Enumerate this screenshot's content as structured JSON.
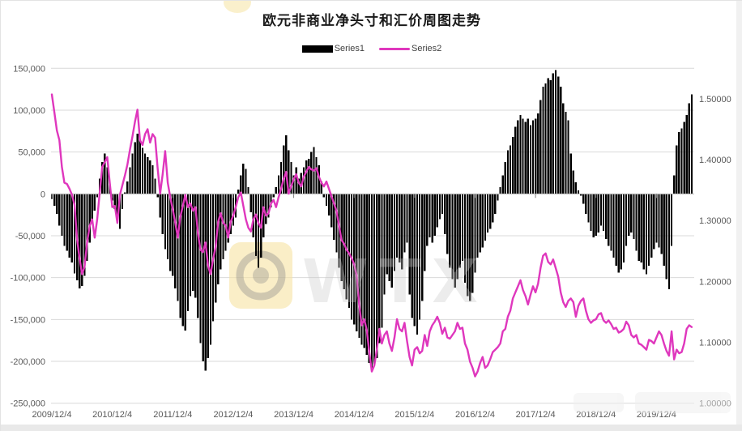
{
  "title": "欧元非商业净头寸和汇价周图走势",
  "legend": [
    {
      "label": "Series1",
      "color": "#000000",
      "type": "bar"
    },
    {
      "label": "Series2",
      "color": "#df37bd",
      "type": "line"
    }
  ],
  "colors": {
    "bar": "#000000",
    "line": "#df37bd",
    "gridline": "#d9d9d9",
    "zero_axis": "#bfbfbf",
    "axis_tick": "#808080",
    "axis_text": "#595959",
    "watermark_yellow": "#f6e3a2",
    "watermark_gray": "#8a8a8a"
  },
  "watermark": {
    "center_letters": "WTX",
    "has_center_badge": true,
    "has_corner_mark": true
  },
  "chart_data": {
    "type": "bar+line",
    "title": "欧元非商业净头寸和汇价周图走势",
    "x_start": "2009/12/4",
    "sample_interval": "semi-monthly",
    "samples_per_year": 24,
    "grid": "horizontal",
    "legend_position": "top-center",
    "x_tick_labels": [
      "2009/12/4",
      "2010/12/4",
      "2011/12/4",
      "2012/12/4",
      "2013/12/4",
      "2014/12/4",
      "2015/12/4",
      "2016/12/4",
      "2017/12/4",
      "2018/12/4",
      "2019/12/4"
    ],
    "left_axis": {
      "series": "Series1",
      "range": [
        -250000,
        150000
      ],
      "tick_labels": [
        "150,000",
        "100,000",
        "50,000",
        "0",
        "-50,000",
        "-100,000",
        "-150,000",
        "-200,000",
        "-250,000"
      ]
    },
    "right_axis": {
      "series": "Series2",
      "range": [
        1.0,
        1.55
      ],
      "tick_values": [
        1.5,
        1.4,
        1.3,
        1.2,
        1.1,
        1.0
      ],
      "tick_labels": [
        "1.50000",
        "1.40000",
        "1.30000",
        "1.20000",
        "1.10000",
        "1.00000"
      ]
    },
    "series": [
      {
        "name": "Series1",
        "type": "bar",
        "color": "#000000",
        "values": [
          -6000,
          -14000,
          -24000,
          -38000,
          -50000,
          -62000,
          -68000,
          -76000,
          -82000,
          -95000,
          -103000,
          -113000,
          -110000,
          -98000,
          -80000,
          -58000,
          -35000,
          -20000,
          -4000,
          18000,
          38000,
          48000,
          32000,
          12000,
          -8000,
          -18000,
          -32000,
          -42000,
          -18000,
          2000,
          15000,
          32000,
          48000,
          62000,
          72000,
          65000,
          55000,
          48000,
          44000,
          40000,
          34000,
          18000,
          -4000,
          -28000,
          -48000,
          -66000,
          -78000,
          -92000,
          -98000,
          -113000,
          -128000,
          -148000,
          -158000,
          -163000,
          -140000,
          -122000,
          -116000,
          -124000,
          -148000,
          -178000,
          -200000,
          -211000,
          -196000,
          -180000,
          -152000,
          -130000,
          -108000,
          -90000,
          -78000,
          -68000,
          -58000,
          -48000,
          -38000,
          -28000,
          5000,
          22000,
          36000,
          30000,
          8000,
          -22000,
          -52000,
          -74000,
          -88000,
          -76000,
          -52000,
          -36000,
          -28000,
          -16000,
          -4000,
          8000,
          22000,
          38000,
          58000,
          70000,
          52000,
          38000,
          22000,
          32000,
          18000,
          25000,
          32000,
          40000,
          42000,
          50000,
          56000,
          44000,
          34000,
          15000,
          -4000,
          -14000,
          -26000,
          -40000,
          -55000,
          -70000,
          -88000,
          -104000,
          -114000,
          -126000,
          -136000,
          -150000,
          -156000,
          -164000,
          -172000,
          -180000,
          -184000,
          -192000,
          -202000,
          -208000,
          -204000,
          -196000,
          -178000,
          -160000,
          -120000,
          -96000,
          -104000,
          -112000,
          -92000,
          -76000,
          -82000,
          -90000,
          -70000,
          -58000,
          -120000,
          -148000,
          -158000,
          -168000,
          -150000,
          -128000,
          -92000,
          -62000,
          -52000,
          -58000,
          -50000,
          -40000,
          -30000,
          -24000,
          -48000,
          -72000,
          -88000,
          -102000,
          -112000,
          -102000,
          -88000,
          -80000,
          -106000,
          -122000,
          -128000,
          -118000,
          -94000,
          -76000,
          -70000,
          -64000,
          -56000,
          -46000,
          -42000,
          -34000,
          -24000,
          -8000,
          8000,
          22000,
          38000,
          52000,
          58000,
          68000,
          80000,
          88000,
          94000,
          90000,
          86000,
          90000,
          82000,
          88000,
          90000,
          96000,
          112000,
          128000,
          132000,
          138000,
          136000,
          144000,
          148000,
          140000,
          128000,
          108000,
          98000,
          88000,
          48000,
          28000,
          14000,
          4000,
          -2000,
          -12000,
          -24000,
          -34000,
          -44000,
          -52000,
          -50000,
          -46000,
          -38000,
          -44000,
          -54000,
          -62000,
          -68000,
          -76000,
          -86000,
          -94000,
          -90000,
          -82000,
          -62000,
          -50000,
          -46000,
          -54000,
          -68000,
          -80000,
          -82000,
          -90000,
          -96000,
          -86000,
          -76000,
          -66000,
          -58000,
          -64000,
          -72000,
          -86000,
          -102000,
          -114000,
          -62000,
          22000,
          58000,
          74000,
          78000,
          86000,
          94000,
          108000,
          119000
        ]
      },
      {
        "name": "Series2",
        "type": "line",
        "color": "#df37bd",
        "values": [
          1.507,
          1.478,
          1.448,
          1.432,
          1.388,
          1.362,
          1.36,
          1.352,
          1.342,
          1.326,
          1.27,
          1.238,
          1.212,
          1.224,
          1.264,
          1.291,
          1.302,
          1.272,
          1.302,
          1.346,
          1.388,
          1.396,
          1.404,
          1.362,
          1.322,
          1.324,
          1.296,
          1.342,
          1.358,
          1.374,
          1.392,
          1.416,
          1.438,
          1.462,
          1.482,
          1.432,
          1.424,
          1.442,
          1.45,
          1.428,
          1.442,
          1.436,
          1.386,
          1.344,
          1.376,
          1.414,
          1.362,
          1.338,
          1.318,
          1.296,
          1.272,
          1.306,
          1.324,
          1.342,
          1.322,
          1.328,
          1.316,
          1.322,
          1.278,
          1.252,
          1.248,
          1.264,
          1.226,
          1.212,
          1.236,
          1.256,
          1.298,
          1.312,
          1.296,
          1.292,
          1.272,
          1.298,
          1.308,
          1.322,
          1.338,
          1.346,
          1.324,
          1.302,
          1.288,
          1.282,
          1.302,
          1.31,
          1.296,
          1.288,
          1.322,
          1.308,
          1.312,
          1.328,
          1.334,
          1.322,
          1.338,
          1.352,
          1.368,
          1.38,
          1.344,
          1.356,
          1.368,
          1.376,
          1.362,
          1.356,
          1.372,
          1.38,
          1.388,
          1.384,
          1.382,
          1.386,
          1.372,
          1.362,
          1.356,
          1.364,
          1.352,
          1.34,
          1.328,
          1.316,
          1.292,
          1.268,
          1.262,
          1.252,
          1.246,
          1.238,
          1.228,
          1.21,
          1.162,
          1.128,
          1.138,
          1.12,
          1.084,
          1.052,
          1.062,
          1.088,
          1.122,
          1.098,
          1.112,
          1.118,
          1.098,
          1.086,
          1.108,
          1.138,
          1.122,
          1.118,
          1.132,
          1.102,
          1.076,
          1.062,
          1.088,
          1.092,
          1.082,
          1.086,
          1.112,
          1.094,
          1.118,
          1.128,
          1.134,
          1.142,
          1.132,
          1.114,
          1.124,
          1.108,
          1.106,
          1.112,
          1.118,
          1.132,
          1.122,
          1.124,
          1.098,
          1.088,
          1.068,
          1.058,
          1.044,
          1.052,
          1.066,
          1.076,
          1.058,
          1.062,
          1.072,
          1.084,
          1.088,
          1.092,
          1.098,
          1.118,
          1.122,
          1.142,
          1.152,
          1.172,
          1.182,
          1.192,
          1.202,
          1.186,
          1.176,
          1.162,
          1.178,
          1.192,
          1.182,
          1.196,
          1.222,
          1.242,
          1.246,
          1.232,
          1.228,
          1.236,
          1.222,
          1.208,
          1.182,
          1.166,
          1.158,
          1.168,
          1.172,
          1.166,
          1.142,
          1.16,
          1.168,
          1.172,
          1.152,
          1.138,
          1.132,
          1.136,
          1.138,
          1.146,
          1.148,
          1.136,
          1.132,
          1.136,
          1.13,
          1.122,
          1.124,
          1.116,
          1.118,
          1.122,
          1.134,
          1.128,
          1.112,
          1.108,
          1.112,
          1.098,
          1.096,
          1.092,
          1.088,
          1.104,
          1.102,
          1.098,
          1.108,
          1.118,
          1.112,
          1.098,
          1.086,
          1.078,
          1.118,
          1.072,
          1.088,
          1.082,
          1.084,
          1.098,
          1.122,
          1.128,
          1.125
        ]
      }
    ]
  }
}
